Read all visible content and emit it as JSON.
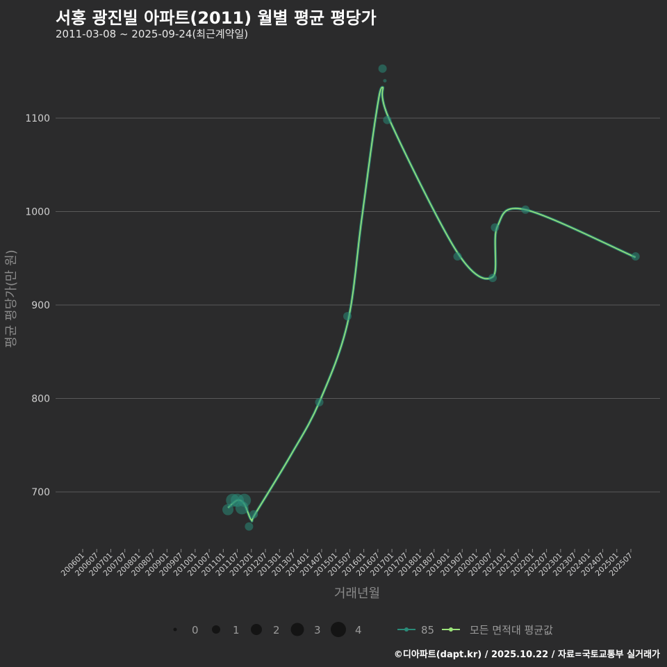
{
  "header": {
    "title": "서홍 광진빌 아파트(2011) 월별 평균 평당가",
    "subtitle": "2011-03-08 ~ 2025-09-24(최근계약일)"
  },
  "caption": "©디아파트(dapt.kr) / 2025.10.22 / 자료=국토교통부 실거래가",
  "colors": {
    "background": "#2b2b2c",
    "grid": "#5a5a5a",
    "series_85": "#2a8a78",
    "avg_line": "#9be37a"
  },
  "chart_data": {
    "type": "line",
    "xlabel": "거래년월",
    "ylabel": "평균 평당가(만 원)",
    "ylim": [
      640,
      1150
    ],
    "yticks": [
      700,
      800,
      900,
      1000,
      1100
    ],
    "x_range": [
      "2006-01",
      "2025-10"
    ],
    "x_ticks": [
      "200601",
      "200607",
      "200701",
      "200707",
      "200801",
      "200807",
      "200901",
      "200907",
      "201001",
      "201007",
      "201101",
      "201107",
      "201201",
      "201207",
      "201301",
      "201307",
      "201401",
      "201407",
      "201501",
      "201507",
      "201601",
      "201607",
      "201701",
      "201707",
      "201801",
      "201807",
      "201901",
      "201907",
      "202001",
      "202007",
      "202101",
      "202107",
      "202201",
      "202207",
      "202301",
      "202307",
      "202401",
      "202407",
      "202501",
      "202507"
    ],
    "points_85": [
      {
        "x": "2011-03",
        "y": 681,
        "count": 2
      },
      {
        "x": "2011-05",
        "y": 691,
        "count": 3
      },
      {
        "x": "2011-07",
        "y": 691,
        "count": 3
      },
      {
        "x": "2011-09",
        "y": 683,
        "count": 3
      },
      {
        "x": "2011-10",
        "y": 691,
        "count": 3
      },
      {
        "x": "2011-12",
        "y": 663,
        "count": 1
      },
      {
        "x": "2012-02",
        "y": 676,
        "count": 1
      },
      {
        "x": "2014-06",
        "y": 796,
        "count": 1
      },
      {
        "x": "2015-06",
        "y": 888,
        "count": 1
      },
      {
        "x": "2016-09",
        "y": 1153,
        "count": 1
      },
      {
        "x": "2016-10",
        "y": 1140,
        "count": 0
      },
      {
        "x": "2016-11",
        "y": 1098,
        "count": 1
      },
      {
        "x": "2019-05",
        "y": 952,
        "count": 1
      },
      {
        "x": "2020-08",
        "y": 929,
        "count": 1
      },
      {
        "x": "2020-09",
        "y": 983,
        "count": 1
      },
      {
        "x": "2021-10",
        "y": 1002,
        "count": 1
      },
      {
        "x": "2025-09",
        "y": 952,
        "count": 1
      }
    ],
    "avg_line": [
      {
        "x": "2011-03",
        "y": 683
      },
      {
        "x": "2011-07",
        "y": 691
      },
      {
        "x": "2011-10",
        "y": 687
      },
      {
        "x": "2012-01",
        "y": 670
      },
      {
        "x": "2012-03",
        "y": 678
      },
      {
        "x": "2013-06",
        "y": 740
      },
      {
        "x": "2014-06",
        "y": 796
      },
      {
        "x": "2015-06",
        "y": 880
      },
      {
        "x": "2015-12",
        "y": 990
      },
      {
        "x": "2016-06",
        "y": 1100
      },
      {
        "x": "2016-09",
        "y": 1133
      },
      {
        "x": "2016-12",
        "y": 1098
      },
      {
        "x": "2019-05",
        "y": 956
      },
      {
        "x": "2020-08",
        "y": 930
      },
      {
        "x": "2020-10",
        "y": 984
      },
      {
        "x": "2021-10",
        "y": 1002
      },
      {
        "x": "2025-09",
        "y": 951
      }
    ],
    "legend": {
      "size_title": "",
      "size_values": [
        "0",
        "1",
        "2",
        "3",
        "4"
      ],
      "series": [
        {
          "name": "85",
          "color": "#2a8a78"
        },
        {
          "name": "모든 면적대 평균값",
          "color": "#9be37a"
        }
      ]
    }
  }
}
